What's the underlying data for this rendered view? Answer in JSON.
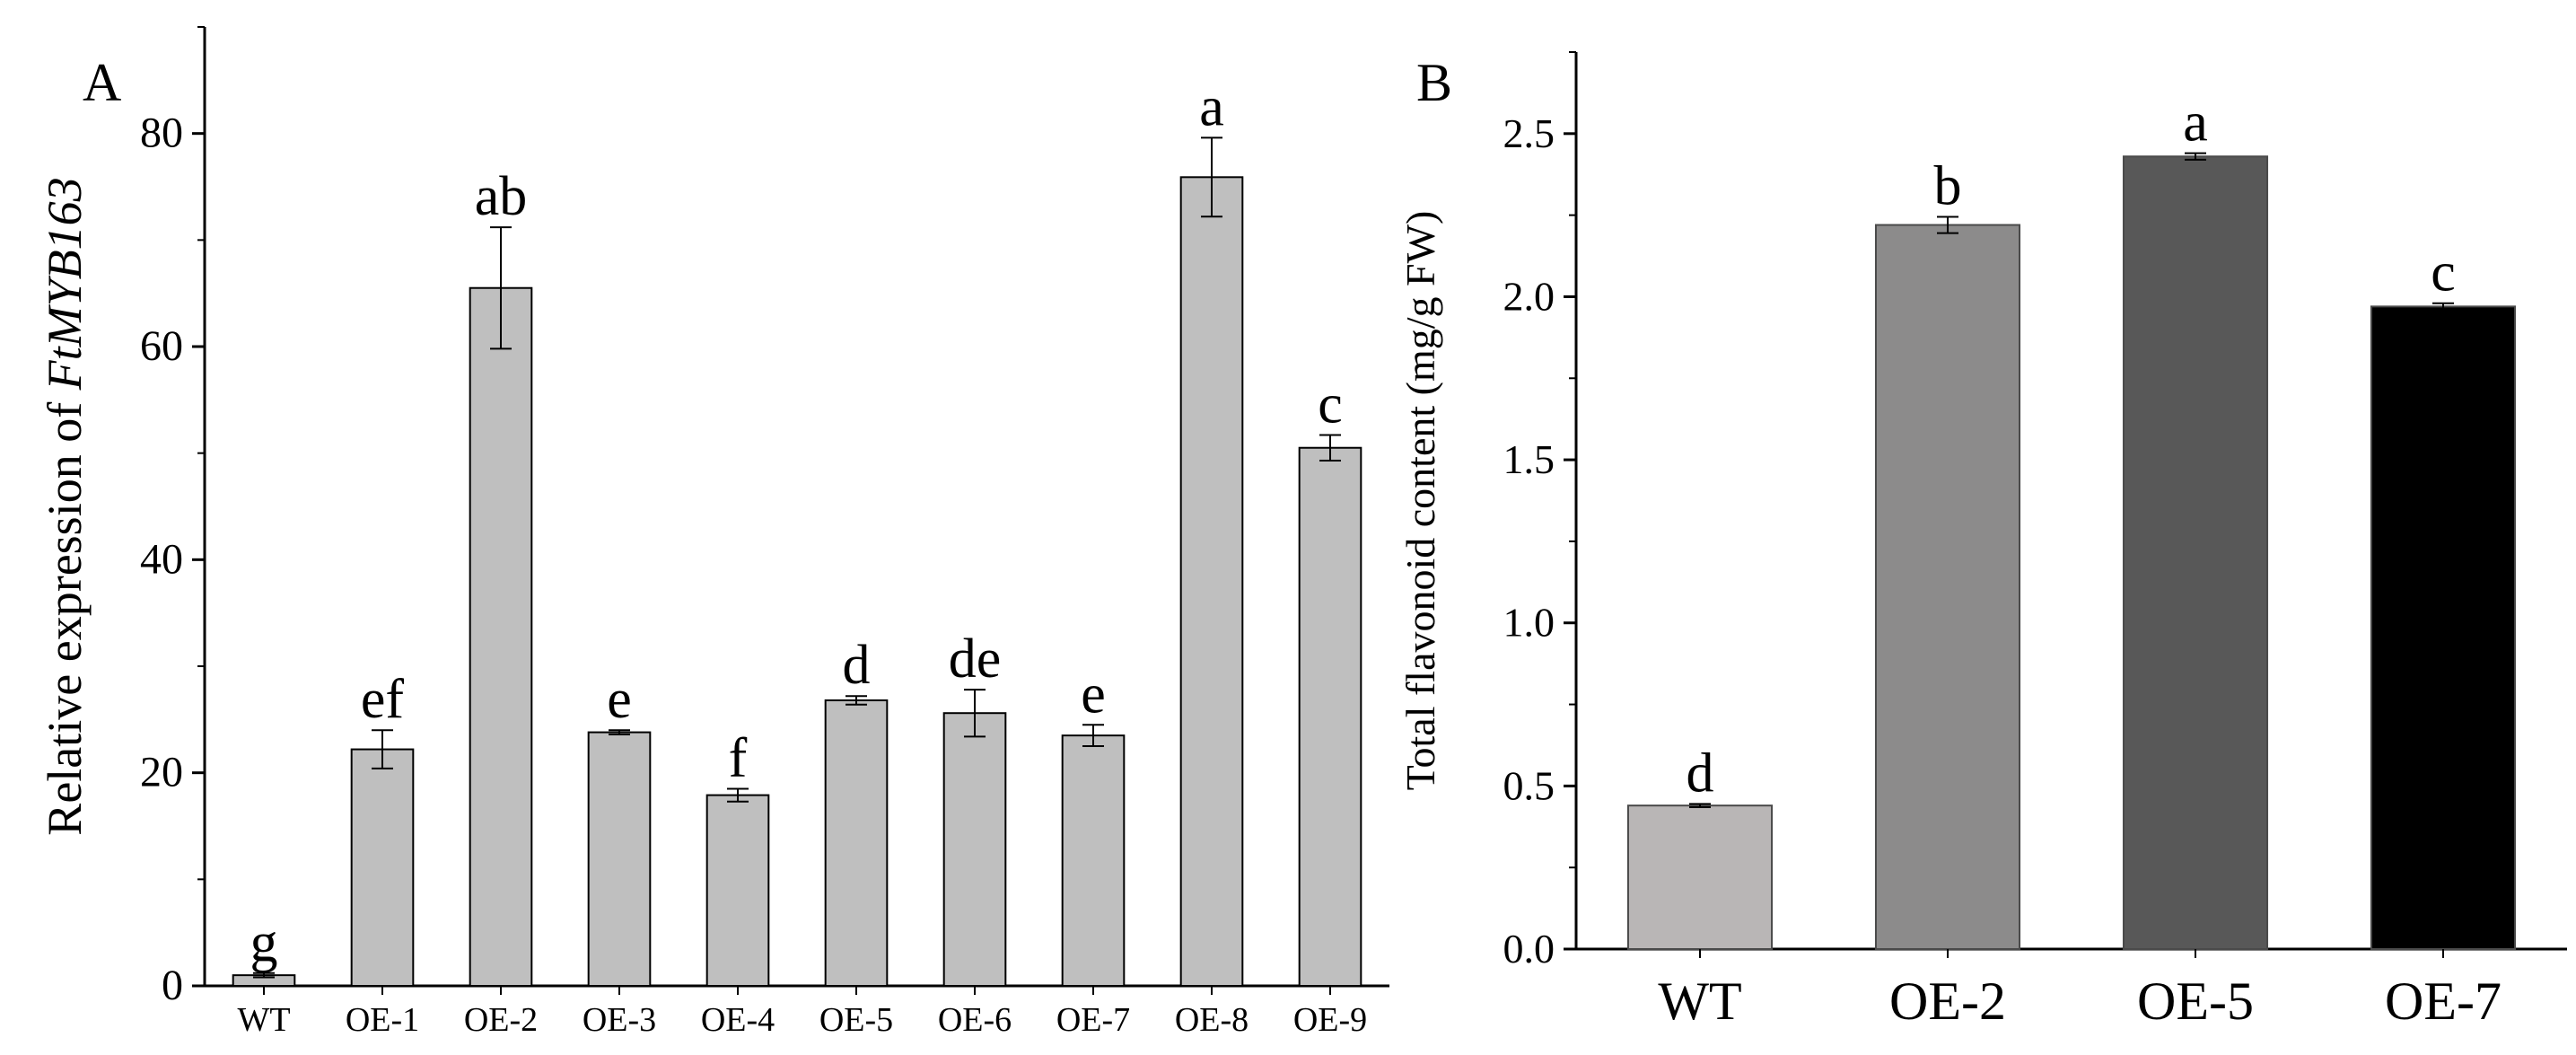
{
  "chart_data": [
    {
      "panel": "A",
      "type": "bar",
      "ylabel_prefix": "Relative expression of ",
      "ylabel_italic": "FtMYB163",
      "xlabel": "",
      "ylim": [
        0,
        90
      ],
      "yticks": [
        0,
        20,
        40,
        60,
        80
      ],
      "categories": [
        "WT",
        "OE-1",
        "OE-2",
        "OE-3",
        "OE-4",
        "OE-5",
        "OE-6",
        "OE-7",
        "OE-8",
        "OE-9"
      ],
      "values": [
        1,
        22.2,
        65.5,
        23.8,
        17.9,
        26.8,
        25.6,
        23.5,
        75.9,
        50.5
      ],
      "errors": [
        0.2,
        1.8,
        5.7,
        0.2,
        0.6,
        0.4,
        2.2,
        1.0,
        3.7,
        1.2
      ],
      "letters": [
        "g",
        "ef",
        "ab",
        "e",
        "f",
        "d",
        "de",
        "e",
        "a",
        "c"
      ],
      "colors": [
        "#bfbfbf",
        "#bfbfbf",
        "#bfbfbf",
        "#bfbfbf",
        "#bfbfbf",
        "#bfbfbf",
        "#bfbfbf",
        "#bfbfbf",
        "#bfbfbf",
        "#bfbfbf"
      ]
    },
    {
      "panel": "B",
      "type": "bar",
      "ylabel": "Total flavonoid content (mg/g FW)",
      "xlabel": "",
      "ylim": [
        0,
        2.75
      ],
      "yticks": [
        0.0,
        0.5,
        1.0,
        1.5,
        2.0,
        2.5
      ],
      "ytick_labels": [
        "0.0",
        "0.5",
        "1.0",
        "1.5",
        "2.0",
        "2.5"
      ],
      "categories": [
        "WT",
        "OE-2",
        "OE-5",
        "OE-7"
      ],
      "values": [
        0.44,
        2.22,
        2.43,
        1.97
      ],
      "errors": [
        0.005,
        0.025,
        0.01,
        0.01
      ],
      "letters": [
        "d",
        "b",
        "a",
        "c"
      ],
      "colors": [
        "#b9b6b6",
        "#8c8b8b",
        "#585858",
        "#000000"
      ]
    }
  ]
}
